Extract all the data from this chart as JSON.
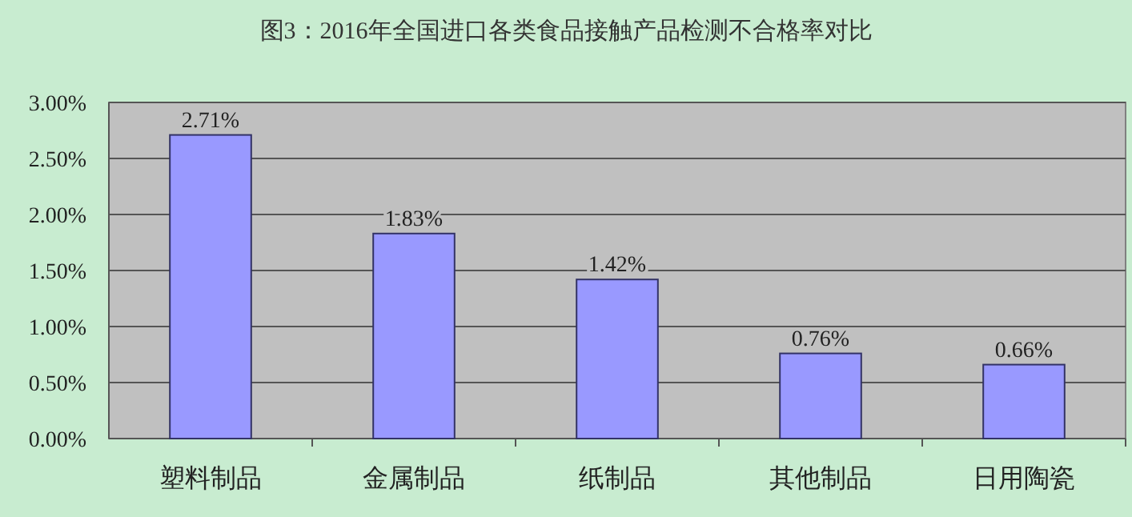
{
  "chart_data": {
    "type": "bar",
    "title": "图3：2016年全国进口各类食品接触产品检测不合格率对比",
    "categories": [
      "塑料制品",
      "金属制品",
      "纸制品",
      "其他制品",
      "日用陶瓷"
    ],
    "values": [
      2.71,
      1.83,
      1.42,
      0.76,
      0.66
    ],
    "value_labels": [
      "2.71%",
      "1.83%",
      "1.42%",
      "0.76%",
      "0.66%"
    ],
    "color": "#9999ff",
    "ylim": [
      0,
      3
    ],
    "yticks": [
      {
        "value": 0,
        "label": "0.00%"
      },
      {
        "value": 0.5,
        "label": "0.50%"
      },
      {
        "value": 1,
        "label": "1.00%"
      },
      {
        "value": 1.5,
        "label": "1.50%"
      },
      {
        "value": 2,
        "label": "2.00%"
      },
      {
        "value": 2.5,
        "label": "2.50%"
      },
      {
        "value": 3,
        "label": "3.00%"
      }
    ],
    "grid": "y"
  }
}
